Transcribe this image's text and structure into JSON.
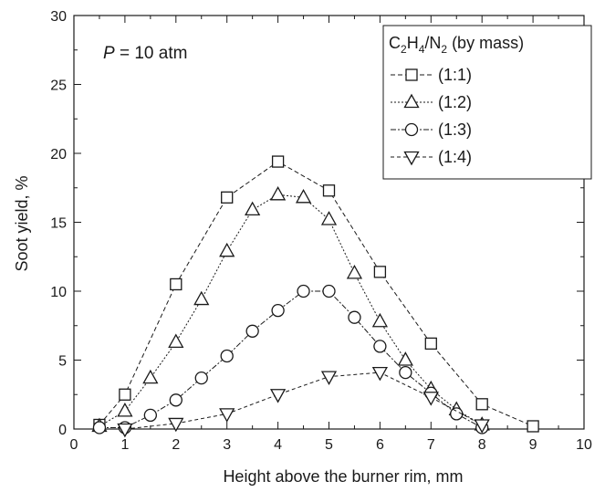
{
  "chart_data": {
    "type": "line",
    "xlabel": "Height above the burner rim, mm",
    "ylabel": "Soot yield, %",
    "xlim": [
      0,
      10
    ],
    "ylim": [
      0,
      30
    ],
    "xticks": [
      0,
      1,
      2,
      3,
      4,
      5,
      6,
      7,
      8,
      9,
      10
    ],
    "yticks": [
      0,
      5,
      10,
      15,
      20,
      25,
      30
    ],
    "annotation": {
      "var": "P",
      "rest": " = 10 atm"
    },
    "legend": {
      "title": {
        "a": "C",
        "a_sub": "2",
        "b": "H",
        "b_sub": "4",
        "c": "/N",
        "c_sub": "2",
        "d": " (by mass)"
      },
      "position": "top-right"
    },
    "series": [
      {
        "name": "(1:1)",
        "marker": "square",
        "dash": "5,3",
        "x": [
          0.5,
          1,
          2,
          3,
          4,
          5,
          6,
          7,
          8,
          9
        ],
        "y": [
          0.3,
          2.5,
          10.5,
          16.8,
          19.4,
          17.3,
          11.4,
          6.2,
          1.8,
          0.2
        ]
      },
      {
        "name": "(1:2)",
        "marker": "triangle-up",
        "dash": "2,2",
        "x": [
          0.5,
          1,
          1.5,
          2,
          2.5,
          3,
          3.5,
          4,
          4.5,
          5,
          5.5,
          6,
          6.5,
          7,
          7.5,
          8
        ],
        "y": [
          0.2,
          1.3,
          3.7,
          6.3,
          9.4,
          12.9,
          15.9,
          17.0,
          16.8,
          15.2,
          11.3,
          7.8,
          5.0,
          2.9,
          1.4,
          0.3
        ]
      },
      {
        "name": "(1:3)",
        "marker": "circle",
        "dash": "6,2,2,2",
        "x": [
          0.5,
          1,
          1.5,
          2,
          2.5,
          3,
          3.5,
          4,
          4.5,
          5,
          5.5,
          6,
          6.5,
          7,
          7.5,
          8
        ],
        "y": [
          0.1,
          0.1,
          1.0,
          2.1,
          3.7,
          5.3,
          7.1,
          8.6,
          10.0,
          10.0,
          8.1,
          6.0,
          4.1,
          2.6,
          1.1,
          0.1
        ]
      },
      {
        "name": "(1:4)",
        "marker": "triangle-down",
        "dash": "4,3",
        "x": [
          1,
          2,
          3,
          4,
          5,
          6,
          7,
          8
        ],
        "y": [
          0.0,
          0.4,
          1.1,
          2.5,
          3.8,
          4.1,
          2.3,
          0.3
        ]
      }
    ]
  }
}
